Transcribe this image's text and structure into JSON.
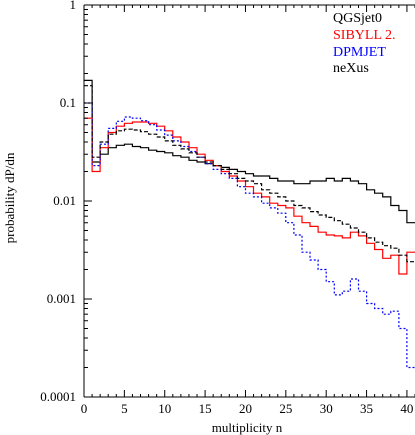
{
  "chart_data": {
    "type": "line",
    "title": "",
    "xlabel": "multiplicity n",
    "ylabel": "probability dP/dn",
    "xlim": [
      0,
      41
    ],
    "ylim": [
      0.0001,
      1
    ],
    "yscale": "log",
    "grid": false,
    "legend_position": "top-right",
    "x_ticks": [
      0,
      5,
      10,
      15,
      20,
      25,
      30,
      35,
      40
    ],
    "x_tick_labels": [
      "0",
      "5",
      "10",
      "15",
      "20",
      "25",
      "30",
      "35",
      "40"
    ],
    "y_ticks": [
      1,
      0.1,
      0.01,
      0.001,
      0.0001
    ],
    "y_tick_labels": [
      "1",
      "0.1",
      "0.01",
      "0.001",
      "0.0001"
    ],
    "series": [
      {
        "name": "QGSjet0",
        "color": "#000000",
        "style": "solid",
        "n": [
          0,
          1,
          2,
          3,
          4,
          5,
          6,
          7,
          8,
          9,
          10,
          11,
          12,
          13,
          14,
          15,
          16,
          17,
          18,
          19,
          20,
          21,
          22,
          23,
          24,
          25,
          26,
          27,
          28,
          29,
          30,
          31,
          32,
          33,
          34,
          35,
          36,
          37,
          38,
          39,
          40
        ],
        "values": [
          0.17,
          0.025,
          0.03,
          0.035,
          0.037,
          0.038,
          0.036,
          0.035,
          0.033,
          0.032,
          0.031,
          0.029,
          0.028,
          0.026,
          0.025,
          0.024,
          0.023,
          0.022,
          0.021,
          0.02,
          0.019,
          0.018,
          0.018,
          0.017,
          0.016,
          0.016,
          0.015,
          0.015,
          0.016,
          0.016,
          0.017,
          0.016,
          0.017,
          0.016,
          0.015,
          0.013,
          0.012,
          0.011,
          0.009,
          0.008,
          0.006
        ]
      },
      {
        "name": "SIBYLL 2.",
        "color": "#ff0000",
        "style": "solid",
        "n": [
          0,
          1,
          2,
          3,
          4,
          5,
          6,
          7,
          8,
          9,
          10,
          11,
          12,
          13,
          14,
          15,
          16,
          17,
          18,
          19,
          20,
          21,
          22,
          23,
          24,
          25,
          26,
          27,
          28,
          29,
          30,
          31,
          32,
          33,
          34,
          35,
          36,
          37,
          38,
          39,
          40
        ],
        "values": [
          0.07,
          0.02,
          0.035,
          0.05,
          0.058,
          0.062,
          0.064,
          0.064,
          0.062,
          0.058,
          0.052,
          0.045,
          0.04,
          0.035,
          0.03,
          0.026,
          0.023,
          0.02,
          0.018,
          0.016,
          0.014,
          0.012,
          0.011,
          0.0095,
          0.009,
          0.0085,
          0.007,
          0.006,
          0.0055,
          0.0048,
          0.0045,
          0.0044,
          0.0042,
          0.0048,
          0.0044,
          0.0037,
          0.0032,
          0.0026,
          0.0028,
          0.0018,
          0.003
        ]
      },
      {
        "name": "DPMJET",
        "color": "#0000ff",
        "style": "dotted",
        "n": [
          0,
          1,
          2,
          3,
          4,
          5,
          6,
          7,
          8,
          9,
          10,
          11,
          12,
          13,
          14,
          15,
          16,
          17,
          18,
          19,
          20,
          21,
          22,
          23,
          24,
          25,
          26,
          27,
          28,
          29,
          30,
          31,
          32,
          33,
          34,
          35,
          36,
          37,
          38,
          39,
          40
        ],
        "values": [
          0.1,
          0.023,
          0.038,
          0.055,
          0.065,
          0.072,
          0.07,
          0.066,
          0.06,
          0.053,
          0.047,
          0.041,
          0.036,
          0.032,
          0.028,
          0.024,
          0.021,
          0.019,
          0.017,
          0.014,
          0.012,
          0.011,
          0.0095,
          0.0085,
          0.0075,
          0.006,
          0.0045,
          0.003,
          0.0025,
          0.002,
          0.0015,
          0.0011,
          0.0012,
          0.0016,
          0.0012,
          0.0009,
          0.0008,
          0.0007,
          0.00075,
          0.0005,
          0.0002
        ]
      },
      {
        "name": "neXus",
        "color": "#000000",
        "style": "dashed",
        "n": [
          0,
          1,
          2,
          3,
          4,
          5,
          6,
          7,
          8,
          9,
          10,
          11,
          12,
          13,
          14,
          15,
          16,
          17,
          18,
          19,
          20,
          21,
          22,
          23,
          24,
          25,
          26,
          27,
          28,
          29,
          30,
          31,
          32,
          33,
          34,
          35,
          36,
          37,
          38,
          39,
          40
        ],
        "values": [
          0.15,
          0.028,
          0.04,
          0.048,
          0.052,
          0.054,
          0.053,
          0.051,
          0.048,
          0.045,
          0.041,
          0.037,
          0.034,
          0.031,
          0.028,
          0.025,
          0.023,
          0.021,
          0.019,
          0.017,
          0.016,
          0.015,
          0.013,
          0.012,
          0.011,
          0.01,
          0.009,
          0.0085,
          0.0078,
          0.0072,
          0.0068,
          0.0063,
          0.0058,
          0.0053,
          0.0048,
          0.0042,
          0.0038,
          0.0035,
          0.0033,
          0.0028,
          0.0024
        ]
      }
    ]
  }
}
